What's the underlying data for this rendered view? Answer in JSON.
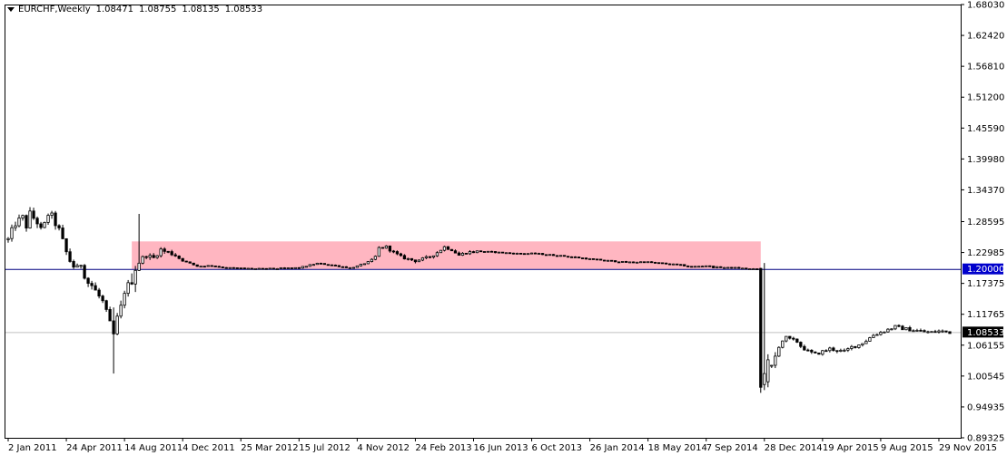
{
  "header": {
    "symbol": "EURCHF,Weekly",
    "open": "1.08471",
    "high": "1.08755",
    "low": "1.08135",
    "close": "1.08533"
  },
  "colors": {
    "background": "#ffffff",
    "axis": "#000000",
    "candle": "#000000",
    "zone": "#ffb6c1",
    "line_1_20": "#000080",
    "line_price": "#c0c0c0",
    "label_1_20_bg": "#0000cc",
    "label_price_bg": "#000000"
  },
  "chart_data": {
    "type": "candlestick",
    "y_ticks": [
      "1.68030",
      "1.62420",
      "1.56810",
      "1.51200",
      "1.45590",
      "1.39980",
      "1.34370",
      "1.28595",
      "1.22985",
      "1.17375",
      "1.11765",
      "1.06155",
      "1.00545",
      "0.94935",
      "0.89325"
    ],
    "x_ticks": [
      {
        "label": "2 Jan 2011",
        "x": 0
      },
      {
        "label": "24 Apr 2011",
        "x": 16
      },
      {
        "label": "14 Aug 2011",
        "x": 32
      },
      {
        "label": "4 Dec 2011",
        "x": 48
      },
      {
        "label": "25 Mar 2012",
        "x": 64
      },
      {
        "label": "15 Jul 2012",
        "x": 80
      },
      {
        "label": "4 Nov 2012",
        "x": 96
      },
      {
        "label": "24 Feb 2013",
        "x": 112
      },
      {
        "label": "16 Jun 2013",
        "x": 128
      },
      {
        "label": "6 Oct 2013",
        "x": 144
      },
      {
        "label": "26 Jan 2014",
        "x": 160
      },
      {
        "label": "18 May 2014",
        "x": 176
      },
      {
        "label": "7 Sep 2014",
        "x": 192
      },
      {
        "label": "28 Dec 2014",
        "x": 208
      },
      {
        "label": "19 Apr 2015",
        "x": 224
      },
      {
        "label": "9 Aug 2015",
        "x": 240
      },
      {
        "label": "29 Nov 2015",
        "x": 256
      }
    ],
    "ylim": [
      0.89325,
      1.6803
    ],
    "xlim": [
      -1,
      262
    ],
    "horizontal_lines": [
      {
        "value": 1.2,
        "label": "1.20000"
      },
      {
        "value": 1.08533,
        "label": "1.08533"
      }
    ],
    "zone": {
      "x0": 34,
      "x1": 207,
      "y0": 1.2,
      "y1": 1.25
    },
    "anchors": [
      [
        0,
        1.253
      ],
      [
        2,
        1.283
      ],
      [
        4,
        1.293
      ],
      [
        5,
        1.278
      ],
      [
        6,
        1.3
      ],
      [
        8,
        1.285
      ],
      [
        9,
        1.27
      ],
      [
        10,
        1.28
      ],
      [
        11,
        1.3
      ],
      [
        12,
        1.295
      ],
      [
        14,
        1.27
      ],
      [
        15,
        1.25
      ],
      [
        16,
        1.23
      ],
      [
        17,
        1.215
      ],
      [
        18,
        1.205
      ],
      [
        19,
        1.2
      ],
      [
        20,
        1.21
      ],
      [
        21,
        1.19
      ],
      [
        22,
        1.175
      ],
      [
        23,
        1.17
      ],
      [
        24,
        1.16
      ],
      [
        25,
        1.15
      ],
      [
        26,
        1.14
      ],
      [
        27,
        1.12
      ],
      [
        28,
        1.1
      ],
      [
        29,
        1.08
      ],
      [
        30,
        1.11
      ],
      [
        31,
        1.13
      ],
      [
        32,
        1.16
      ],
      [
        33,
        1.17
      ],
      [
        34,
        1.185
      ],
      [
        35,
        1.205
      ],
      [
        36,
        1.212
      ],
      [
        37,
        1.22
      ],
      [
        38,
        1.225
      ],
      [
        39,
        1.222
      ],
      [
        40,
        1.22
      ],
      [
        41,
        1.228
      ],
      [
        42,
        1.235
      ],
      [
        43,
        1.232
      ],
      [
        44,
        1.23
      ],
      [
        45,
        1.228
      ],
      [
        46,
        1.225
      ],
      [
        47,
        1.22
      ],
      [
        48,
        1.215
      ],
      [
        50,
        1.21
      ],
      [
        52,
        1.205
      ],
      [
        56,
        1.206
      ],
      [
        60,
        1.202
      ],
      [
        70,
        1.2
      ],
      [
        80,
        1.202
      ],
      [
        83,
        1.207
      ],
      [
        85,
        1.21
      ],
      [
        88,
        1.208
      ],
      [
        92,
        1.204
      ],
      [
        94,
        1.202
      ],
      [
        96,
        1.205
      ],
      [
        98,
        1.21
      ],
      [
        100,
        1.215
      ],
      [
        101,
        1.222
      ],
      [
        102,
        1.238
      ],
      [
        104,
        1.24
      ],
      [
        106,
        1.23
      ],
      [
        108,
        1.222
      ],
      [
        110,
        1.218
      ],
      [
        112,
        1.215
      ],
      [
        114,
        1.218
      ],
      [
        116,
        1.222
      ],
      [
        118,
        1.23
      ],
      [
        120,
        1.24
      ],
      [
        122,
        1.235
      ],
      [
        124,
        1.225
      ],
      [
        126,
        1.23
      ],
      [
        130,
        1.232
      ],
      [
        135,
        1.23
      ],
      [
        140,
        1.228
      ],
      [
        145,
        1.228
      ],
      [
        150,
        1.225
      ],
      [
        155,
        1.222
      ],
      [
        160,
        1.218
      ],
      [
        165,
        1.215
      ],
      [
        170,
        1.212
      ],
      [
        175,
        1.213
      ],
      [
        180,
        1.21
      ],
      [
        185,
        1.207
      ],
      [
        188,
        1.204
      ],
      [
        190,
        1.205
      ],
      [
        192,
        1.206
      ],
      [
        194,
        1.203
      ],
      [
        196,
        1.203
      ],
      [
        198,
        1.202
      ],
      [
        200,
        1.202
      ],
      [
        202,
        1.201
      ],
      [
        204,
        1.2
      ],
      [
        206,
        1.199
      ],
      [
        207,
        1.2
      ],
      [
        208,
        1.01
      ],
      [
        209,
        1.015
      ],
      [
        210,
        1.02
      ],
      [
        211,
        1.04
      ],
      [
        212,
        1.06
      ],
      [
        213,
        1.07
      ],
      [
        214,
        1.075
      ],
      [
        215,
        1.072
      ],
      [
        216,
        1.07
      ],
      [
        217,
        1.068
      ],
      [
        218,
        1.06
      ],
      [
        219,
        1.055
      ],
      [
        220,
        1.05
      ],
      [
        222,
        1.045
      ],
      [
        224,
        1.05
      ],
      [
        226,
        1.055
      ],
      [
        228,
        1.052
      ],
      [
        230,
        1.05
      ],
      [
        232,
        1.058
      ],
      [
        234,
        1.062
      ],
      [
        236,
        1.07
      ],
      [
        238,
        1.08
      ],
      [
        240,
        1.085
      ],
      [
        242,
        1.09
      ],
      [
        244,
        1.095
      ],
      [
        246,
        1.092
      ],
      [
        248,
        1.09
      ],
      [
        250,
        1.088
      ],
      [
        252,
        1.086
      ],
      [
        254,
        1.085
      ],
      [
        256,
        1.087
      ],
      [
        258,
        1.086
      ],
      [
        259,
        1.085
      ]
    ]
  }
}
